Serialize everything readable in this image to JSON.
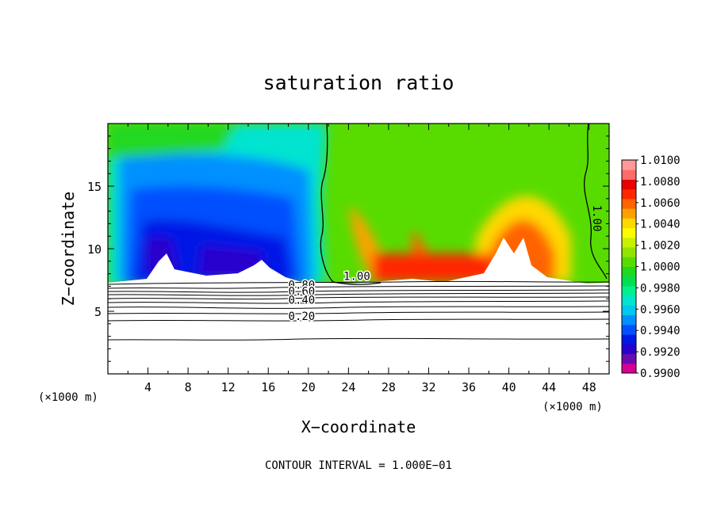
{
  "chart_data": {
    "type": "heatmap",
    "title": "saturation ratio",
    "xlabel": "X−coordinate",
    "ylabel": "Z−coordinate",
    "x_unit_left": "(×1000 m)",
    "x_unit_right": "(×1000 m)",
    "footer": "CONTOUR INTERVAL = 1.000E−01",
    "xlim": [
      0,
      50
    ],
    "ylim": [
      0,
      20
    ],
    "x_ticks": [
      4,
      8,
      12,
      16,
      20,
      24,
      28,
      32,
      36,
      40,
      44,
      48
    ],
    "y_ticks": [
      5,
      10,
      15
    ],
    "colorbar": {
      "min": 0.99,
      "max": 1.01,
      "labels": [
        "1.0100",
        "1.0080",
        "1.0060",
        "1.0040",
        "1.0020",
        "1.0000",
        "0.9980",
        "0.9960",
        "0.9940",
        "0.9920",
        "0.9900"
      ],
      "colors": [
        "#d50095",
        "#6a0ab0",
        "#2a00cc",
        "#0018e6",
        "#0050ff",
        "#0090ff",
        "#00c8f0",
        "#00e4d0",
        "#00f08c",
        "#00e050",
        "#20d820",
        "#58dc00",
        "#90e400",
        "#c8f000",
        "#fcfc00",
        "#ffd800",
        "#ffa000",
        "#ff6400",
        "#ff2800",
        "#e60000",
        "#ff6a6a",
        "#ff9898"
      ]
    },
    "contour_labels": [
      {
        "text": "1.00",
        "x": 23.5,
        "z": 7.5
      },
      {
        "text": "1.00",
        "x": 48.4,
        "z": 13.5,
        "rotate": 90
      },
      {
        "text": "0.80",
        "x": 18.0,
        "z": 6.8
      },
      {
        "text": "0.60",
        "x": 18.0,
        "z": 6.3
      },
      {
        "text": "0.40",
        "x": 18.0,
        "z": 5.6
      },
      {
        "text": "0.20",
        "x": 18.0,
        "z": 4.3
      }
    ]
  }
}
